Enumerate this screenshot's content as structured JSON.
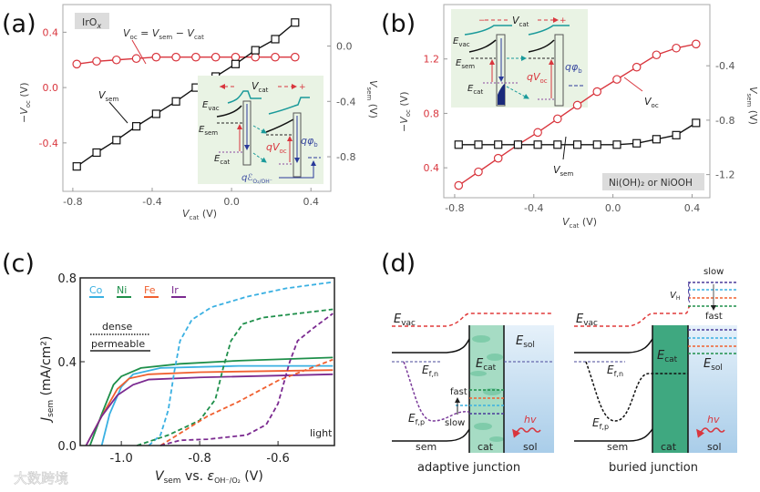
{
  "panels": {
    "a": {
      "letter": "(a)",
      "badge": "IrO",
      "badge_sub": "x",
      "eq": {
        "v1": "V",
        "s1": "oc",
        "mid": " = ",
        "v2": "V",
        "s2": "sem",
        "minus": " − ",
        "v3": "V",
        "s3": "cat"
      },
      "vsem_label": {
        "v": "V",
        "s": "sem"
      },
      "inset": {
        "vcat": "V",
        "vcat_sub": "cat",
        "minus_sign": "−",
        "plus_sign": "+",
        "evac": "E",
        "evac_sub": "vac",
        "esem": "E",
        "esem_sub": "sem",
        "ecat": "E",
        "ecat_sub": "cat",
        "qvoc": "qV",
        "qvoc_sub": "oc",
        "qphi": "qφ",
        "qphi_sub": "b",
        "qeps": "qℰ",
        "qeps_sub": "O₂/OH⁻"
      }
    },
    "b": {
      "letter": "(b)",
      "badge": "Ni(OH)₂ or NiOOH",
      "voc_label": {
        "v": "V",
        "s": "oc"
      },
      "vsem_label": {
        "v": "V",
        "s": "sem"
      },
      "inset": {
        "vcat": "V",
        "vcat_sub": "cat",
        "minus_sign": "−",
        "plus_sign": "+",
        "evac": "E",
        "evac_sub": "vac",
        "esem": "E",
        "esem_sub": "sem",
        "ecat": "E",
        "ecat_sub": "cat",
        "qvoc": "qV",
        "qvoc_sub": "oc",
        "qphi": "qφ",
        "qphi_sub": "b"
      }
    },
    "c": {
      "letter": "(c)",
      "legend_dense": "dense",
      "legend_permeable": "permeable",
      "light": "light"
    },
    "d": {
      "letter": "(d)",
      "adaptive": {
        "title": "adaptive junction",
        "evac": "E",
        "evac_sub": "vac",
        "esol": "E",
        "esol_sub": "sol",
        "ecat": "E",
        "ecat_sub": "cat",
        "efn": "E",
        "efn_sub": "f,n",
        "efp": "E",
        "efp_sub": "f,p",
        "fast": "fast",
        "slow": "slow",
        "hv": "hv",
        "sem": "sem",
        "cat": "cat",
        "sol": "sol"
      },
      "buried": {
        "title": "buried junction",
        "evac": "E",
        "evac_sub": "vac",
        "esol": "E",
        "esol_sub": "sol",
        "ecat": "E",
        "ecat_sub": "cat",
        "efn": "E",
        "efn_sub": "f,n",
        "efp": "E",
        "efp_sub": "f,p",
        "fast": "fast",
        "slow": "slow",
        "vh": "V",
        "vh_sub": "H",
        "hv": "hv",
        "sem": "sem",
        "cat": "cat",
        "sol": "sol"
      }
    }
  },
  "watermark": "大数跨境",
  "colors": {
    "red": "#d9363e",
    "black": "#111111",
    "Co": "#3ab0e2",
    "Ni": "#1e8f4a",
    "Fe": "#f06030",
    "Ir": "#7b2a90",
    "inset_bg": "#e9f3e4",
    "badge_bg": "#dcdcdc"
  },
  "chart_data": [
    {
      "id": "a",
      "type": "line",
      "title": "",
      "xlabel": {
        "v": "V",
        "s": "cat",
        "u": " (V)"
      },
      "ylabel_left": {
        "pre": "−",
        "v": "V",
        "s": "oc",
        "u": " (V)"
      },
      "ylabel_right": {
        "v": "V",
        "s": "sem",
        "u": " (V)"
      },
      "xlim": [
        -0.85,
        0.5
      ],
      "ylim_left": [
        -0.75,
        0.6
      ],
      "ylim_right": [
        -1.05,
        0.3
      ],
      "xticks": [
        "-0.8",
        "-0.4",
        "0.0",
        "0.4"
      ],
      "xtick_values": [
        -0.8,
        -0.4,
        0.0,
        0.4
      ],
      "yticks_left": [
        "0.4",
        "0.0",
        "-0.4"
      ],
      "ytick_left_values": [
        0.4,
        0.0,
        -0.4
      ],
      "yticks_right": [
        "0.0",
        "-0.4",
        "-0.8"
      ],
      "ytick_right_values": [
        0.0,
        -0.4,
        -0.8
      ],
      "x": [
        -0.78,
        -0.68,
        -0.58,
        -0.48,
        -0.38,
        -0.28,
        -0.18,
        -0.08,
        0.02,
        0.12,
        0.22,
        0.32
      ],
      "series": [
        {
          "name": "-Voc",
          "axis": "left",
          "marker": "circle",
          "color": "#d9363e",
          "values": [
            0.17,
            0.19,
            0.2,
            0.21,
            0.22,
            0.22,
            0.22,
            0.22,
            0.22,
            0.22,
            0.22,
            0.22
          ]
        },
        {
          "name": "Vsem",
          "axis": "right",
          "marker": "square",
          "color": "#111111",
          "values": [
            -0.87,
            -0.77,
            -0.68,
            -0.58,
            -0.49,
            -0.4,
            -0.3,
            -0.22,
            -0.13,
            -0.03,
            0.05,
            0.17
          ]
        }
      ]
    },
    {
      "id": "b",
      "type": "line",
      "title": "",
      "xlabel": {
        "v": "V",
        "s": "cat",
        "u": " (V)"
      },
      "ylabel_left": {
        "pre": "−",
        "v": "V",
        "s": "oc",
        "u": " (V)"
      },
      "ylabel_right": {
        "v": "V",
        "s": "sem",
        "u": " (V)"
      },
      "xlim": [
        -0.855,
        0.49
      ],
      "ylim_left": [
        0.18,
        1.6
      ],
      "ylim_right": [
        -1.37,
        0.05
      ],
      "xticks": [
        "-0.8",
        "-0.4",
        "0.0",
        "0.4"
      ],
      "xtick_values": [
        -0.8,
        -0.4,
        0.0,
        0.4
      ],
      "yticks_left": [
        "1.2",
        "0.8",
        "0.4"
      ],
      "ytick_left_values": [
        1.2,
        0.8,
        0.4
      ],
      "yticks_right": [
        "-0.4",
        "-0.8",
        "-1.2"
      ],
      "ytick_right_values": [
        -0.4,
        -0.8,
        -1.2
      ],
      "x": [
        -0.78,
        -0.68,
        -0.58,
        -0.48,
        -0.38,
        -0.28,
        -0.18,
        -0.08,
        0.02,
        0.12,
        0.22,
        0.32,
        0.42
      ],
      "series": [
        {
          "name": "-Voc",
          "axis": "left",
          "marker": "circle",
          "color": "#d9363e",
          "values": [
            0.27,
            0.37,
            0.47,
            0.57,
            0.66,
            0.76,
            0.86,
            0.96,
            1.05,
            1.14,
            1.23,
            1.28,
            1.31
          ]
        },
        {
          "name": "Vsem",
          "axis": "right",
          "marker": "square",
          "color": "#111111",
          "values": [
            -0.98,
            -0.98,
            -0.98,
            -0.98,
            -0.98,
            -0.98,
            -0.98,
            -0.98,
            -0.98,
            -0.97,
            -0.94,
            -0.91,
            -0.82
          ]
        }
      ]
    },
    {
      "id": "c",
      "type": "line",
      "title": "",
      "xlabel": {
        "v": "V",
        "s": "sem",
        "mid": " vs. ",
        "e": "ε",
        "es": "OH⁻/O₂",
        "u": " (V)"
      },
      "ylabel": {
        "v": "J",
        "s": "sem",
        "u": " (mA/cm²)"
      },
      "xlim": [
        -1.105,
        -0.456
      ],
      "ylim": [
        0,
        0.8
      ],
      "xticks": [
        "-1.0",
        "-0.8",
        "-0.6"
      ],
      "xtick_values": [
        -1.0,
        -0.8,
        -0.6
      ],
      "yticks": [
        "0.8",
        "0.4",
        "0.0"
      ],
      "ytick_values": [
        0.8,
        0.4,
        0.0
      ],
      "legend": [
        "Co",
        "Ni",
        "Fe",
        "Ir"
      ],
      "legend_position": "top-left",
      "series": [
        {
          "name": "Co",
          "style": "permeable",
          "color": "#3ab0e2",
          "points": [
            [
              -1.05,
              0
            ],
            [
              -1.03,
              0.15
            ],
            [
              -1.0,
              0.28
            ],
            [
              -0.97,
              0.34
            ],
            [
              -0.9,
              0.37
            ],
            [
              -0.7,
              0.38
            ],
            [
              -0.46,
              0.38
            ]
          ]
        },
        {
          "name": "Ni",
          "style": "permeable",
          "color": "#1e8f4a",
          "points": [
            [
              -1.08,
              0
            ],
            [
              -1.05,
              0.15
            ],
            [
              -1.02,
              0.29
            ],
            [
              -1.0,
              0.33
            ],
            [
              -0.95,
              0.37
            ],
            [
              -0.85,
              0.39
            ],
            [
              -0.7,
              0.405
            ],
            [
              -0.46,
              0.42
            ]
          ]
        },
        {
          "name": "Fe",
          "style": "permeable",
          "color": "#f06030",
          "points": [
            [
              -1.09,
              0
            ],
            [
              -1.05,
              0.14
            ],
            [
              -1.01,
              0.27
            ],
            [
              -0.98,
              0.32
            ],
            [
              -0.93,
              0.34
            ],
            [
              -0.8,
              0.35
            ],
            [
              -0.46,
              0.36
            ]
          ]
        },
        {
          "name": "Ir",
          "style": "permeable",
          "color": "#7b2a90",
          "points": [
            [
              -1.09,
              0
            ],
            [
              -1.05,
              0.14
            ],
            [
              -1.01,
              0.24
            ],
            [
              -0.97,
              0.29
            ],
            [
              -0.93,
              0.315
            ],
            [
              -0.8,
              0.325
            ],
            [
              -0.46,
              0.34
            ]
          ]
        },
        {
          "name": "Co",
          "style": "dense",
          "color": "#3ab0e2",
          "points": [
            [
              -0.93,
              0
            ],
            [
              -0.9,
              0.05
            ],
            [
              -0.88,
              0.17
            ],
            [
              -0.865,
              0.35
            ],
            [
              -0.85,
              0.5
            ],
            [
              -0.82,
              0.6
            ],
            [
              -0.77,
              0.66
            ],
            [
              -0.68,
              0.71
            ],
            [
              -0.58,
              0.75
            ],
            [
              -0.46,
              0.78
            ]
          ]
        },
        {
          "name": "Ni",
          "style": "dense",
          "color": "#1e8f4a",
          "points": [
            [
              -0.96,
              0
            ],
            [
              -0.88,
              0.05
            ],
            [
              -0.8,
              0.12
            ],
            [
              -0.76,
              0.22
            ],
            [
              -0.74,
              0.37
            ],
            [
              -0.72,
              0.5
            ],
            [
              -0.69,
              0.58
            ],
            [
              -0.64,
              0.61
            ],
            [
              -0.55,
              0.63
            ],
            [
              -0.46,
              0.65
            ]
          ]
        },
        {
          "name": "Fe",
          "style": "dense",
          "color": "#f06030",
          "points": [
            [
              -0.9,
              0
            ],
            [
              -0.84,
              0.07
            ],
            [
              -0.78,
              0.14
            ],
            [
              -0.7,
              0.21
            ],
            [
              -0.6,
              0.31
            ],
            [
              -0.53,
              0.36
            ],
            [
              -0.46,
              0.41
            ]
          ]
        },
        {
          "name": "Ir",
          "style": "dense",
          "color": "#7b2a90",
          "points": [
            [
              -0.9,
              0
            ],
            [
              -0.85,
              0.025
            ],
            [
              -0.78,
              0.03
            ],
            [
              -0.68,
              0.05
            ],
            [
              -0.63,
              0.1
            ],
            [
              -0.6,
              0.2
            ],
            [
              -0.585,
              0.3
            ],
            [
              -0.57,
              0.4
            ],
            [
              -0.55,
              0.5
            ],
            [
              -0.51,
              0.56
            ],
            [
              -0.46,
              0.63
            ]
          ]
        }
      ]
    }
  ]
}
